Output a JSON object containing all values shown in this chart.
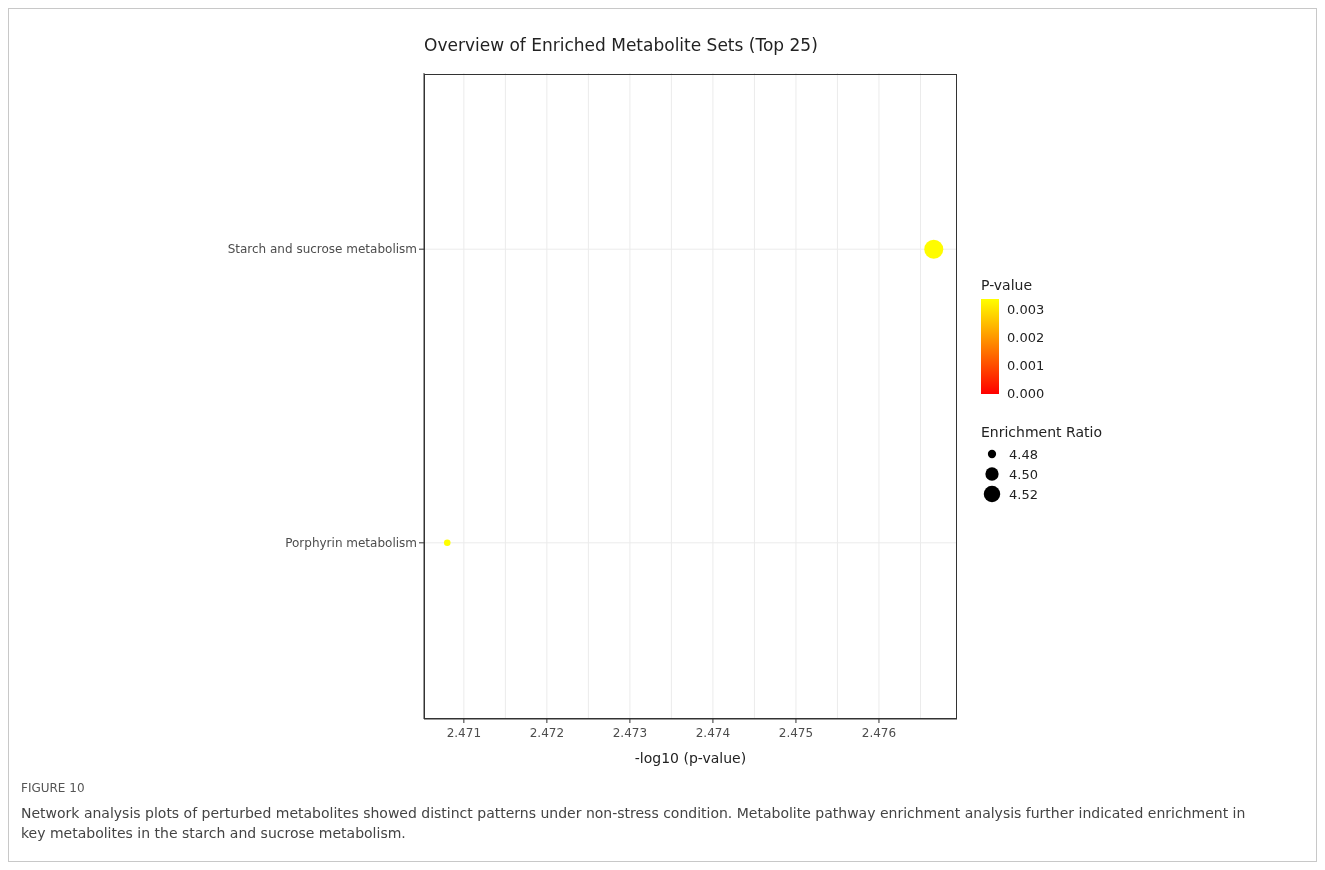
{
  "chart_data": {
    "type": "bubble",
    "title": "Overview of Enriched Metabolite Sets (Top 25)",
    "xlabel": "-log10 (p-value)",
    "orientation": "horizontal",
    "categories": [
      "Starch and sucrose metabolism",
      "Porphyrin metabolism"
    ],
    "values": [
      2.47666,
      2.4708
    ],
    "sizes": [
      1,
      0.12
    ],
    "size_legend": [
      {
        "value": 0.19,
        "label": "4.48"
      },
      {
        "value": 0.49,
        "label": "4.50"
      },
      {
        "value": 0.75,
        "label": "4.52"
      }
    ],
    "legend_title": "Enrichment Ratio",
    "clabel": "P-value",
    "cvalues": [
      0.00334,
      0.00338
    ],
    "clim": [
      0,
      0.00338
    ],
    "cticks": [
      {
        "value": 0,
        "label": "0.000"
      },
      {
        "value": 0.001,
        "label": "0.001"
      },
      {
        "value": 0.002,
        "label": "0.002"
      },
      {
        "value": 0.003,
        "label": "0.003"
      }
    ],
    "xlim": [
      2.47052,
      2.47694
    ],
    "xticks": [
      2.471,
      {
        "value": 2.4715,
        "label": null
      },
      2.472,
      {
        "value": 2.4725,
        "label": null
      },
      2.473,
      {
        "value": 2.4735,
        "label": null
      },
      2.474,
      {
        "value": 2.4745,
        "label": null
      },
      2.475,
      {
        "value": 2.4755,
        "label": null
      },
      2.476,
      {
        "value": 2.4765,
        "label": null
      }
    ],
    "grid": true,
    "annotations": [
      "FIGURE 10",
      "Network analysis plots of perturbed metabolites showed distinct patterns under non-stress condition. Metabolite pathway enrichment analysis further indicated enrichment in key metabolites in the starch and sucrose metabolism."
    ]
  }
}
